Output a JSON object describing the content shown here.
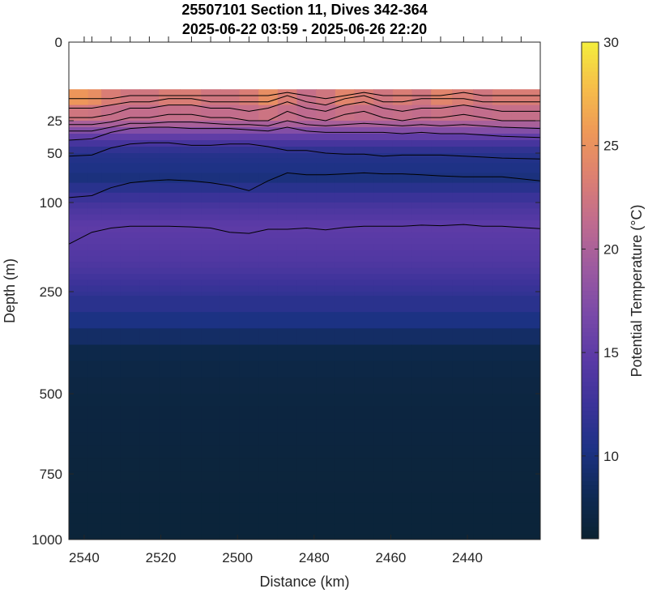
{
  "chart_data": {
    "type": "heatmap",
    "title_lines": [
      "25507101 Section 11, Dives 342-364",
      "2025-06-22 03:59 - 2025-06-26 22:20"
    ],
    "xlabel": "Distance (km)",
    "ylabel": "Depth (m)",
    "colorbar_label": "Potential Temperature (°C)",
    "x_reversed": true,
    "xlim": [
      2544,
      2421
    ],
    "x_ticks": [
      2540,
      2520,
      2500,
      2480,
      2460,
      2440
    ],
    "y_scale": "piecewise",
    "y_ticks": [
      0,
      25,
      50,
      100,
      250,
      500,
      750,
      1000
    ],
    "y_tick_labels": [
      "0",
      "25",
      "50",
      "100",
      "250",
      "500",
      "750",
      "1000"
    ],
    "clim": [
      6,
      30
    ],
    "colorbar_ticks": [
      10,
      15,
      20,
      25,
      30
    ],
    "colormap": [
      "#0a2231",
      "#0f2a55",
      "#1d3285",
      "#3c3399",
      "#5a3aa6",
      "#7a4aa8",
      "#9c5aa0",
      "#bf6b8f",
      "#dc7f72",
      "#ee9858",
      "#f6bd4a",
      "#f4ee3c"
    ],
    "dive_distances": [
      2540,
      2538,
      2533,
      2528,
      2523,
      2518,
      2512,
      2507,
      2502,
      2497,
      2492,
      2487,
      2482,
      2477,
      2472,
      2467,
      2462,
      2457,
      2452,
      2447,
      2441,
      2436,
      2431,
      2426
    ],
    "surface_temperature": [
      27,
      26,
      24,
      23,
      23,
      24,
      24,
      23,
      23,
      24,
      26,
      24,
      22,
      23,
      25,
      24,
      23,
      24,
      23,
      25,
      24,
      23,
      24,
      24
    ],
    "temperature_profile": {
      "depths": [
        15,
        25,
        40,
        50,
        75,
        100,
        140,
        200,
        250,
        330,
        400,
        500,
        750,
        1000
      ],
      "values": [
        25,
        21,
        14,
        11,
        10,
        13,
        15,
        14,
        12,
        10,
        7.5,
        7,
        6.7,
        6.5
      ]
    },
    "contour_lines": [
      {
        "label": "contour-1",
        "depths": [
          170,
          150,
          143,
          140,
          140,
          140,
          141,
          143,
          150,
          152,
          145,
          145,
          143,
          146,
          142,
          140,
          140,
          140,
          138,
          139,
          137,
          140,
          140,
          144
        ]
      },
      {
        "label": "contour-2",
        "depths": [
          95,
          93,
          85,
          80,
          78,
          77,
          78,
          80,
          83,
          88,
          78,
          70,
          72,
          72,
          71,
          70,
          71,
          71,
          72,
          73,
          74,
          74,
          74,
          78
        ]
      },
      {
        "label": "contour-3",
        "depths": [
          53,
          52,
          46,
          43,
          42,
          42,
          44,
          44,
          43,
          43,
          45,
          48,
          48,
          50,
          51,
          51,
          53,
          52,
          52,
          52,
          53,
          54,
          55,
          56
        ]
      },
      {
        "label": "contour-4",
        "depths": [
          40,
          39,
          34,
          31,
          30,
          30,
          31,
          31,
          31,
          32,
          33,
          30,
          33,
          34,
          34,
          34,
          34,
          35,
          34,
          35,
          35,
          36,
          37,
          38
        ]
      },
      {
        "label": "contour-5",
        "depths": [
          33,
          33,
          30,
          27,
          27,
          26,
          26,
          27,
          28,
          28,
          29,
          25,
          28,
          29,
          28,
          27,
          28,
          29,
          28,
          29,
          28,
          29,
          30,
          31
        ]
      },
      {
        "label": "contour-6",
        "depths": [
          28,
          28,
          26,
          24,
          24,
          23,
          23,
          24,
          24,
          25,
          25,
          22,
          24,
          25,
          23,
          22,
          24,
          25,
          24,
          24,
          23,
          24,
          25,
          25
        ]
      },
      {
        "label": "contour-7",
        "depths": [
          24,
          24,
          23,
          21,
          21,
          20,
          20,
          21,
          21,
          22,
          21,
          19,
          21,
          22,
          20,
          19,
          21,
          22,
          21,
          21,
          20,
          21,
          22,
          22
        ]
      },
      {
        "label": "contour-8",
        "depths": [
          21,
          21,
          20,
          19,
          19,
          18,
          18,
          19,
          19,
          19,
          19,
          17,
          19,
          20,
          18,
          17,
          19,
          19,
          18,
          18,
          18,
          19,
          19,
          19
        ]
      },
      {
        "label": "contour-9",
        "depths": [
          18,
          18,
          18,
          17,
          17,
          17,
          17,
          17,
          17,
          17,
          17,
          16,
          17,
          18,
          17,
          16,
          17,
          17,
          17,
          17,
          16,
          17,
          17,
          17
        ]
      }
    ]
  }
}
